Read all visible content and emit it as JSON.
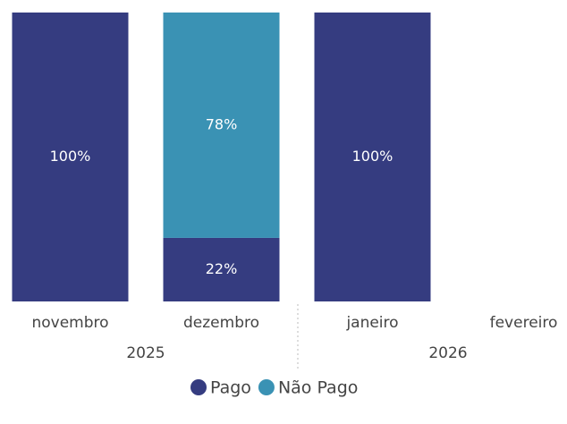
{
  "chart_data": {
    "type": "stacked_bar",
    "categories": [
      "novembro",
      "dezembro",
      "janeiro",
      "fevereiro"
    ],
    "years": [
      "2025",
      "2026"
    ],
    "series": [
      {
        "name": "Pago",
        "color": "#353c80",
        "values": [
          100,
          22,
          100,
          null
        ],
        "value_labels": [
          "100%",
          "22%",
          "100%",
          null
        ]
      },
      {
        "name": "Não Pago",
        "color": "#3a92b4",
        "values": [
          0,
          78,
          0,
          null
        ],
        "value_labels": [
          null,
          "78%",
          null,
          null
        ]
      }
    ],
    "ylim": [
      0,
      100
    ],
    "legend": "bottom"
  }
}
